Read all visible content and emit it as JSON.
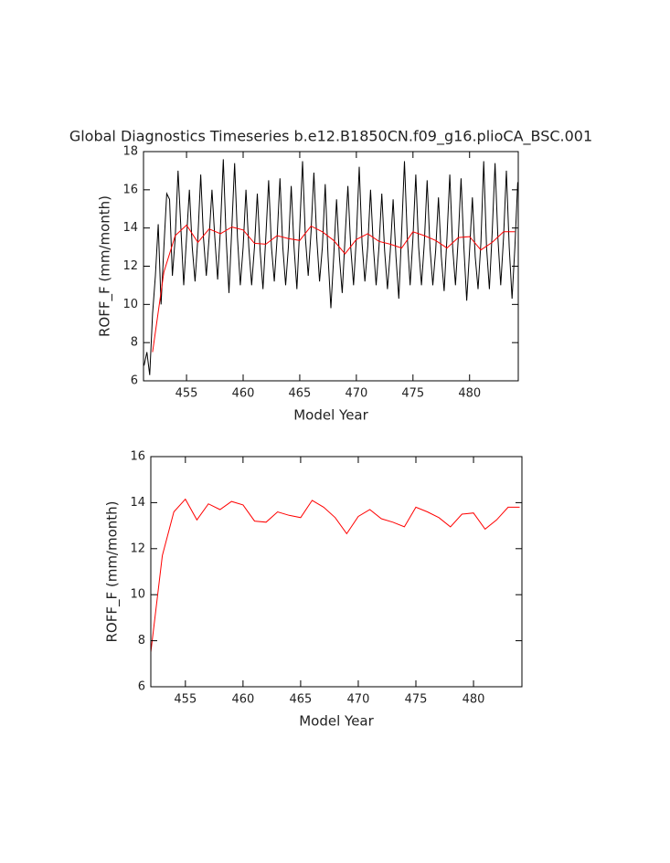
{
  "chart_data": [
    {
      "type": "line",
      "title": "Global Diagnostics Timeseries b.e12.B1850CN.f09_g16.plioCA_BSC.001",
      "xlabel": "Model Year",
      "ylabel": "ROFF_F (mm/month)",
      "xlim": [
        451.2,
        484.3
      ],
      "ylim": [
        6,
        18
      ],
      "xticks": [
        455,
        460,
        465,
        470,
        475,
        480
      ],
      "yticks": [
        6,
        8,
        10,
        12,
        14,
        16,
        18
      ],
      "series": [
        {
          "color": "#000000",
          "x": [
            451.25,
            451.5,
            451.75,
            452,
            452.25,
            452.5,
            452.75,
            453,
            453.25,
            453.5,
            453.75,
            454,
            454.25,
            454.5,
            454.75,
            455,
            455.25,
            455.5,
            455.75,
            456,
            456.25,
            456.5,
            456.75,
            457,
            457.25,
            457.5,
            457.75,
            458,
            458.25,
            458.5,
            458.75,
            459,
            459.25,
            459.5,
            459.75,
            460,
            460.25,
            460.5,
            460.75,
            461,
            461.25,
            461.5,
            461.75,
            462,
            462.25,
            462.5,
            462.75,
            463,
            463.25,
            463.5,
            463.75,
            464,
            464.25,
            464.5,
            464.75,
            465,
            465.25,
            465.5,
            465.75,
            466,
            466.25,
            466.5,
            466.75,
            467,
            467.25,
            467.5,
            467.75,
            468,
            468.25,
            468.5,
            468.75,
            469,
            469.25,
            469.5,
            469.75,
            470,
            470.25,
            470.5,
            470.75,
            471,
            471.25,
            471.5,
            471.75,
            472,
            472.25,
            472.5,
            472.75,
            473,
            473.25,
            473.5,
            473.75,
            474,
            474.25,
            474.5,
            474.75,
            475,
            475.25,
            475.5,
            475.75,
            476,
            476.25,
            476.5,
            476.75,
            477,
            477.25,
            477.5,
            477.75,
            478,
            478.25,
            478.5,
            478.75,
            479,
            479.25,
            479.5,
            479.75,
            480,
            480.25,
            480.5,
            480.75,
            481,
            481.25,
            481.5,
            481.75,
            482,
            482.25,
            482.5,
            482.75,
            483,
            483.25,
            483.5,
            483.75,
            484,
            484.25
          ],
          "values": [
            6.8,
            7.5,
            6.3,
            9.5,
            11.5,
            14.2,
            10.0,
            13.0,
            15.8,
            15.5,
            11.5,
            13.5,
            17.0,
            14.0,
            11.0,
            13.5,
            16.0,
            13.0,
            11.2,
            13.5,
            16.8,
            13.5,
            11.5,
            13.5,
            16.0,
            13.5,
            11.3,
            14.0,
            17.6,
            13.5,
            10.6,
            14.0,
            17.4,
            13.5,
            11.0,
            13.0,
            16.0,
            13.0,
            11.0,
            13.0,
            15.8,
            12.8,
            10.8,
            13.5,
            16.5,
            13.0,
            11.2,
            13.5,
            16.6,
            13.0,
            11.0,
            13.0,
            16.2,
            13.0,
            10.8,
            14.0,
            17.5,
            13.5,
            11.5,
            13.8,
            16.9,
            13.5,
            11.2,
            13.0,
            16.3,
            12.5,
            9.8,
            12.5,
            15.5,
            12.5,
            10.6,
            13.5,
            16.2,
            13.0,
            11.0,
            13.5,
            17.2,
            13.2,
            11.2,
            13.0,
            16.0,
            13.0,
            11.0,
            13.0,
            15.8,
            12.8,
            10.8,
            12.8,
            15.5,
            12.5,
            10.3,
            13.8,
            17.5,
            13.5,
            11.0,
            13.5,
            16.8,
            13.0,
            11.0,
            13.2,
            16.5,
            13.0,
            11.0,
            12.8,
            15.6,
            12.5,
            10.7,
            13.5,
            16.8,
            13.0,
            11.0,
            13.5,
            16.6,
            13.0,
            10.2,
            12.8,
            15.6,
            12.5,
            10.8,
            13.2,
            17.5,
            13.0,
            10.8,
            13.8,
            17.4,
            13.5,
            11.0,
            13.5,
            17.0,
            13.0,
            10.3,
            13.0,
            16.4
          ]
        },
        {
          "color": "#ff0000",
          "x": [
            452,
            453,
            454,
            455,
            456,
            457,
            458,
            459,
            460,
            461,
            462,
            463,
            464,
            465,
            466,
            467,
            468,
            469,
            470,
            471,
            472,
            473,
            474,
            475,
            476,
            477,
            478,
            479,
            480,
            481,
            482,
            483,
            484
          ],
          "values": [
            7.5,
            11.7,
            13.6,
            14.15,
            13.25,
            13.95,
            13.7,
            14.05,
            13.9,
            13.2,
            13.15,
            13.6,
            13.45,
            13.35,
            14.1,
            13.8,
            13.35,
            12.65,
            13.4,
            13.7,
            13.3,
            13.15,
            12.95,
            13.8,
            13.6,
            13.35,
            12.95,
            13.5,
            13.55,
            12.85,
            13.25,
            13.8,
            13.8
          ]
        }
      ]
    },
    {
      "type": "line",
      "xlabel": "Model Year",
      "ylabel": "ROFF_F (mm/month)",
      "xlim": [
        452,
        484.2
      ],
      "ylim": [
        6,
        16
      ],
      "xticks": [
        455,
        460,
        465,
        470,
        475,
        480
      ],
      "yticks": [
        6,
        8,
        10,
        12,
        14,
        16
      ],
      "series": [
        {
          "color": "#ff0000",
          "x": [
            452,
            453,
            454,
            455,
            456,
            457,
            458,
            459,
            460,
            461,
            462,
            463,
            464,
            465,
            466,
            467,
            468,
            469,
            470,
            471,
            472,
            473,
            474,
            475,
            476,
            477,
            478,
            479,
            480,
            481,
            482,
            483,
            484
          ],
          "values": [
            7.5,
            11.7,
            13.6,
            14.15,
            13.25,
            13.95,
            13.7,
            14.05,
            13.9,
            13.2,
            13.15,
            13.6,
            13.45,
            13.35,
            14.1,
            13.8,
            13.35,
            12.65,
            13.4,
            13.7,
            13.3,
            13.15,
            12.95,
            13.8,
            13.6,
            13.35,
            12.95,
            13.5,
            13.55,
            12.85,
            13.25,
            13.8,
            13.8
          ]
        }
      ]
    }
  ]
}
